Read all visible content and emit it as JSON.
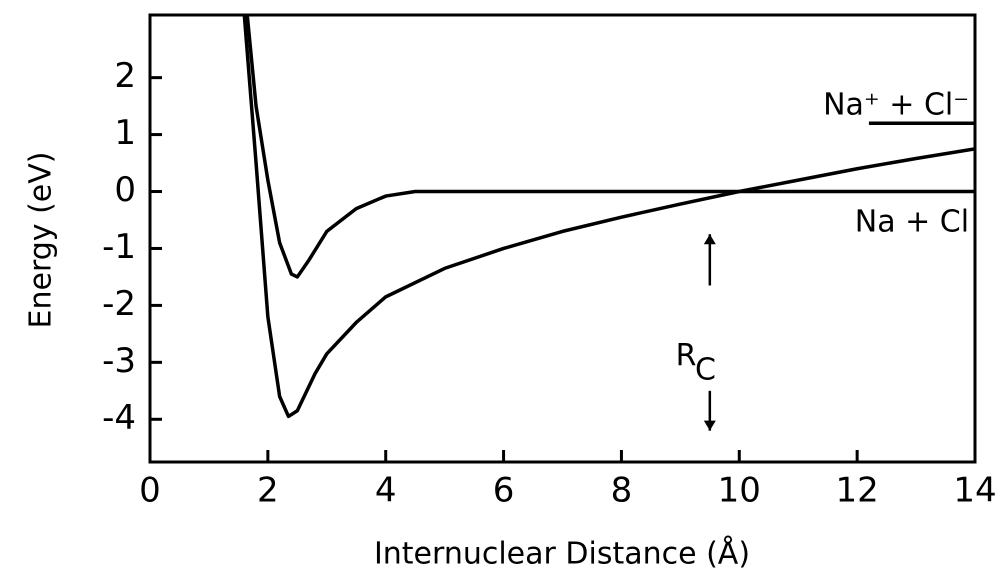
{
  "chart_data": {
    "type": "line",
    "xlabel": "Internuclear Distance (Å)",
    "ylabel": "Energy (eV)",
    "xlim": [
      0,
      14
    ],
    "ylim": [
      -4.75,
      3.1
    ],
    "xticks": [
      0,
      2,
      4,
      6,
      8,
      10,
      12,
      14
    ],
    "yticks": [
      -4,
      -3,
      -2,
      -1,
      0,
      1,
      2
    ],
    "series": [
      {
        "color": "#000000",
        "x": [
          1.65,
          1.8,
          2.0,
          2.2,
          2.4,
          2.5,
          2.7,
          3.0,
          3.5,
          4.0,
          4.5,
          6,
          8,
          10,
          12,
          14
        ],
        "values": [
          3.1,
          1.5,
          0.2,
          -0.9,
          -1.45,
          -1.5,
          -1.2,
          -0.7,
          -0.3,
          -0.08,
          0,
          0,
          0,
          0,
          0,
          0
        ]
      },
      {
        "color": "#000000",
        "x": [
          1.6,
          1.8,
          2.0,
          2.2,
          2.35,
          2.5,
          2.8,
          3.0,
          3.5,
          4.0,
          5.0,
          6.0,
          7.0,
          8.0,
          9.0,
          10.0,
          11.0,
          12.0,
          13.0,
          14.0
        ],
        "values": [
          3.1,
          0.5,
          -2.2,
          -3.6,
          -3.95,
          -3.85,
          -3.2,
          -2.85,
          -2.3,
          -1.85,
          -1.35,
          -1.0,
          -0.7,
          -0.45,
          -0.22,
          0.0,
          0.2,
          0.4,
          0.58,
          0.75
        ]
      },
      {
        "color": "#000000",
        "x": [
          12.2,
          14
        ],
        "values": [
          1.2,
          1.2
        ]
      }
    ],
    "annotations": [
      {
        "text": "Na⁺ + Cl⁻",
        "x": 13.9,
        "y": 1.5
      },
      {
        "text": "Na + Cl",
        "x": 13.9,
        "y": -0.55
      },
      {
        "text": "R",
        "subscript": "C",
        "x": 9.5,
        "y": -2.9
      }
    ]
  }
}
